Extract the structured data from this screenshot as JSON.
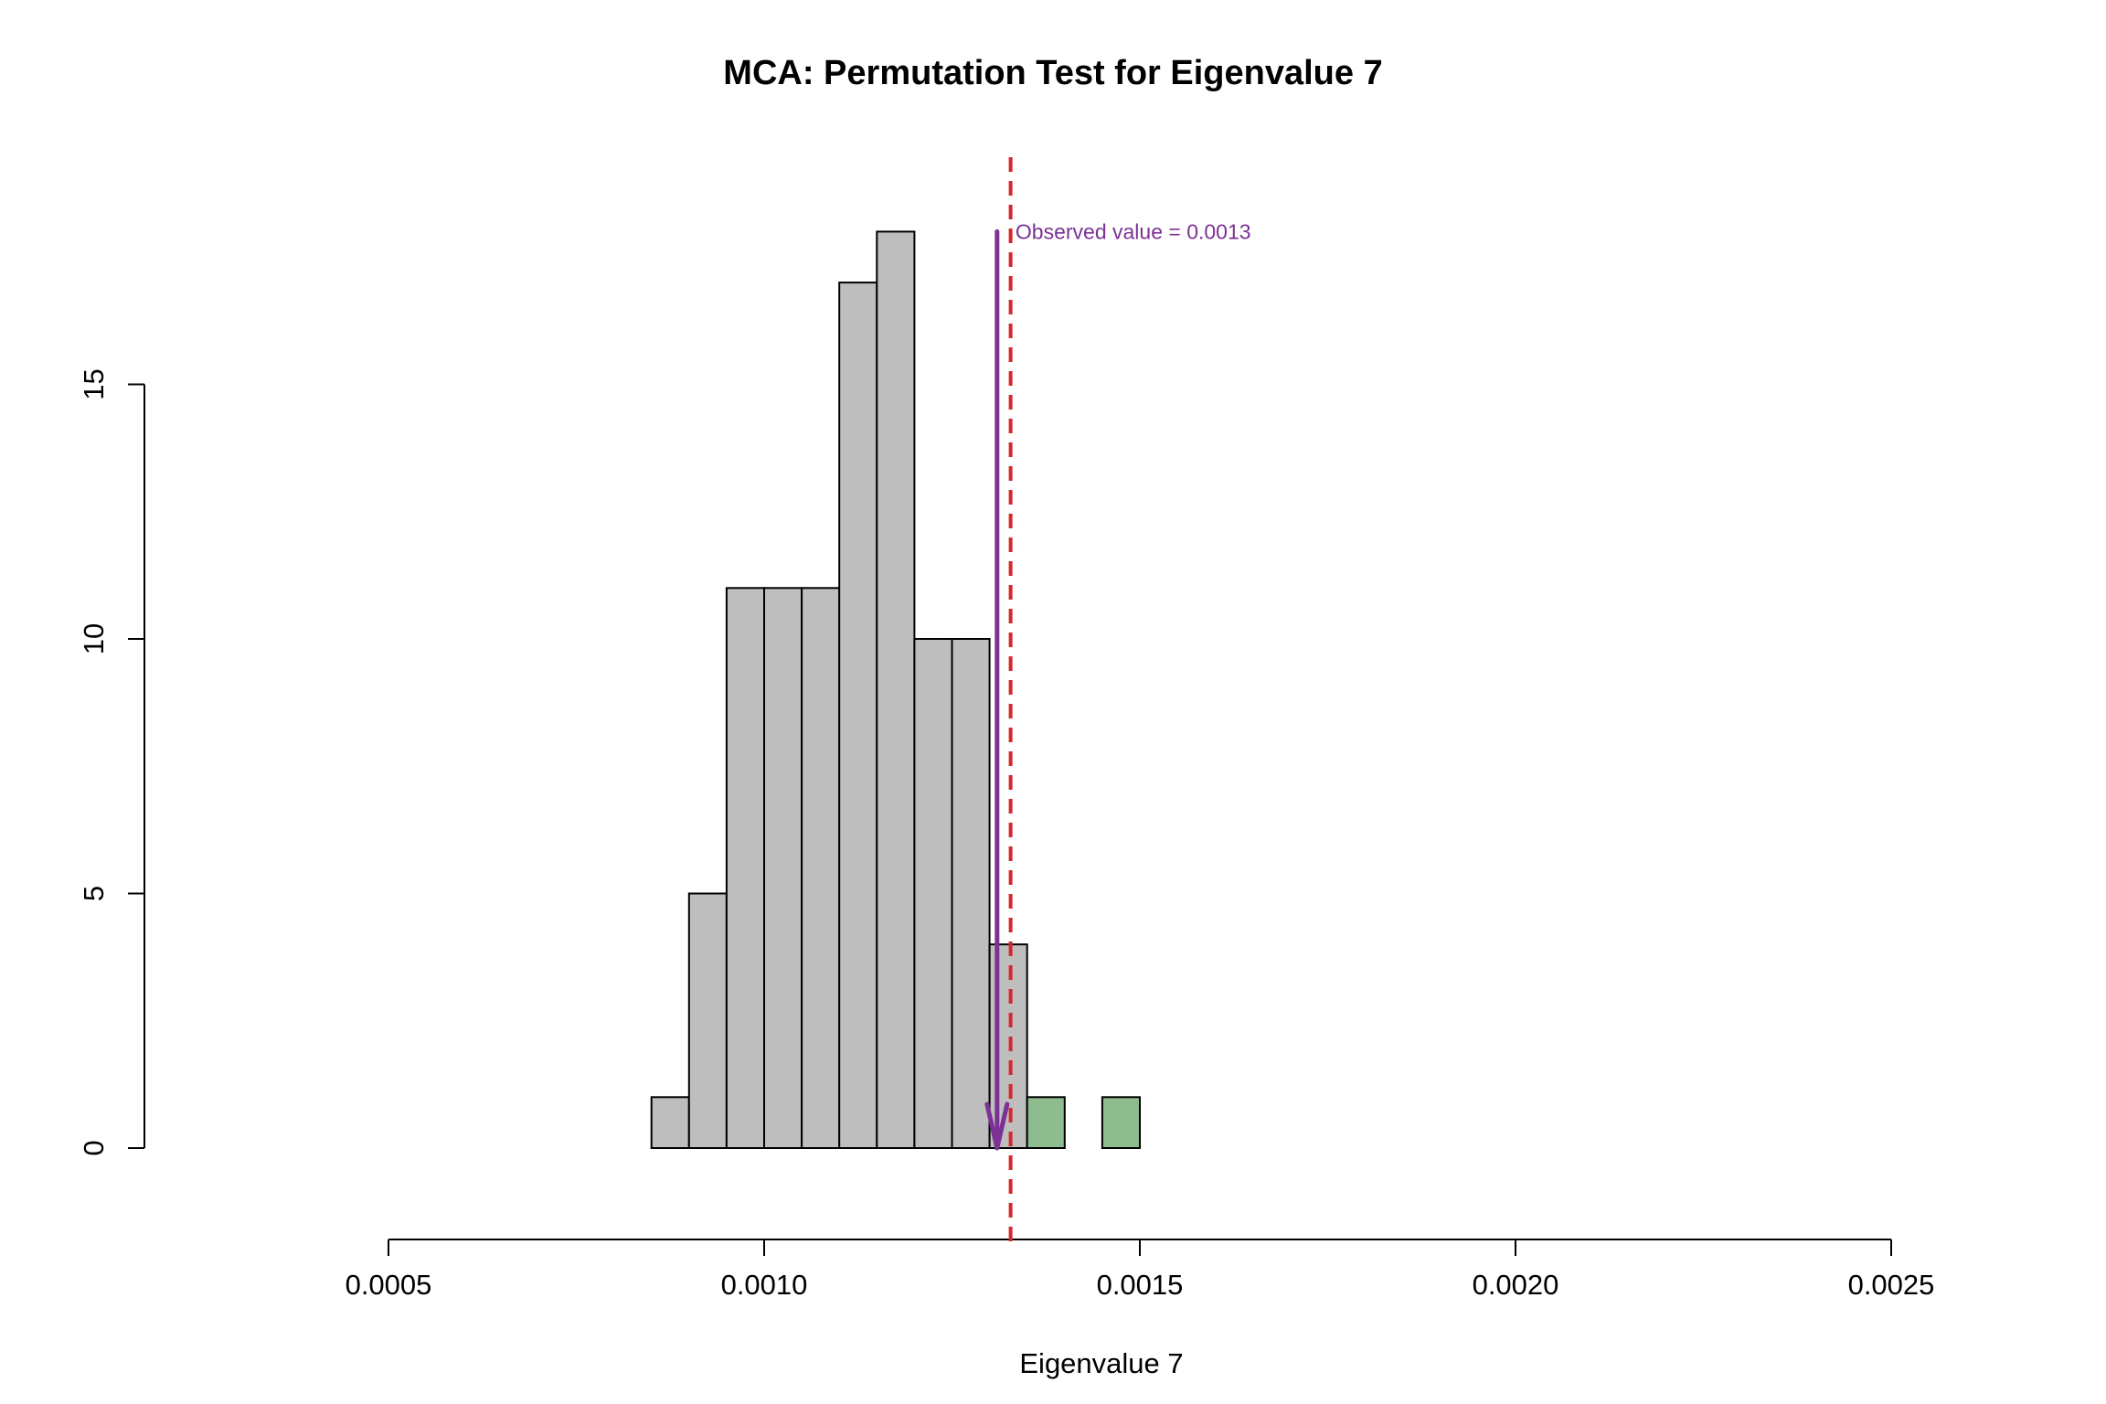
{
  "chart_data": {
    "type": "bar",
    "title": "MCA: Permutation Test for Eigenvalue 7",
    "xlabel": "Eigenvalue 7",
    "ylabel": "",
    "xlim": [
      0.0005,
      0.0025
    ],
    "ylim": [
      0,
      19.5
    ],
    "x_ticks": [
      {
        "value": 0.0005,
        "label": "0.0005"
      },
      {
        "value": 0.001,
        "label": "0.0010"
      },
      {
        "value": 0.0015,
        "label": "0.0015"
      },
      {
        "value": 0.002,
        "label": "0.0020"
      },
      {
        "value": 0.0025,
        "label": "0.0025"
      }
    ],
    "y_ticks": [
      {
        "value": 0,
        "label": "0"
      },
      {
        "value": 5,
        "label": "5"
      },
      {
        "value": 10,
        "label": "10"
      },
      {
        "value": 15,
        "label": "15"
      }
    ],
    "bins": [
      {
        "start": 0.00085,
        "end": 0.0009,
        "count": 1,
        "group": "below"
      },
      {
        "start": 0.0009,
        "end": 0.00095,
        "count": 5,
        "group": "below"
      },
      {
        "start": 0.00095,
        "end": 0.001,
        "count": 11,
        "group": "below"
      },
      {
        "start": 0.001,
        "end": 0.00105,
        "count": 11,
        "group": "below"
      },
      {
        "start": 0.00105,
        "end": 0.0011,
        "count": 11,
        "group": "below"
      },
      {
        "start": 0.0011,
        "end": 0.00115,
        "count": 17,
        "group": "below"
      },
      {
        "start": 0.00115,
        "end": 0.0012,
        "count": 18,
        "group": "below"
      },
      {
        "start": 0.0012,
        "end": 0.00125,
        "count": 10,
        "group": "below"
      },
      {
        "start": 0.00125,
        "end": 0.0013,
        "count": 10,
        "group": "below"
      },
      {
        "start": 0.0013,
        "end": 0.00135,
        "count": 4,
        "group": "below"
      },
      {
        "start": 0.00135,
        "end": 0.0014,
        "count": 1,
        "group": "above"
      },
      {
        "start": 0.0014,
        "end": 0.00145,
        "count": 0,
        "group": "above"
      },
      {
        "start": 0.00145,
        "end": 0.0015,
        "count": 1,
        "group": "above"
      }
    ],
    "observed_line": {
      "x": 0.001328,
      "style": "dashed"
    },
    "arrow": {
      "x": 0.00131,
      "from_count": 18,
      "to_count": 0
    },
    "annotation": {
      "text": "Observed value = 0.0013",
      "x": 0.001332,
      "y": 18
    },
    "colors": {
      "below_fill": "#bebebe",
      "above_fill": "#8fbc8f",
      "bar_stroke": "#000000",
      "observed_line": "#d62728",
      "arrow": "#7b3294",
      "annotation": "#7b3294"
    }
  }
}
